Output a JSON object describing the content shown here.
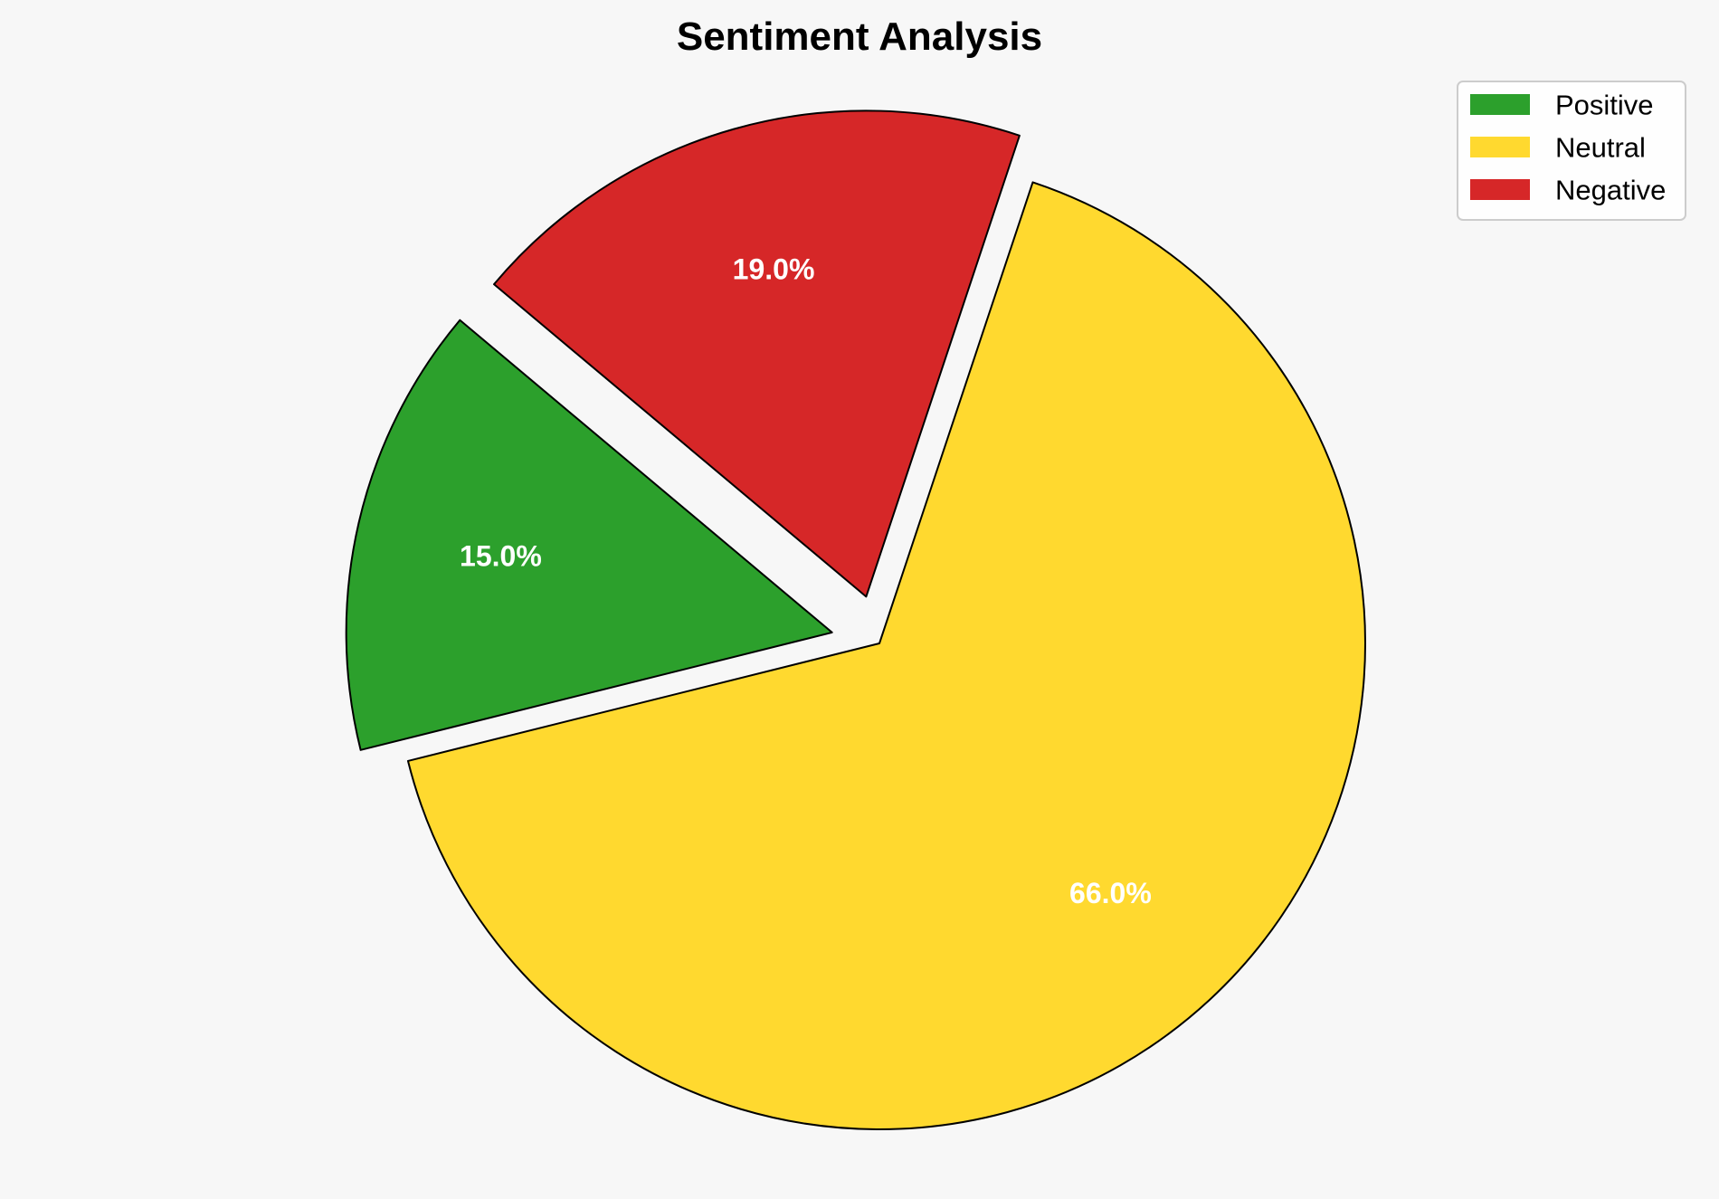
{
  "chart_data": {
    "type": "pie",
    "title": "Sentiment Analysis",
    "categories": [
      "Positive",
      "Neutral",
      "Negative"
    ],
    "values": [
      15.0,
      66.0,
      19.0
    ],
    "labels": [
      "15.0%",
      "66.0%",
      "19.0%"
    ],
    "colors": [
      "#2ca02c",
      "#ffd92f",
      "#d62728"
    ],
    "explode": [
      0.1,
      0,
      0.1
    ],
    "start_angle": 140,
    "direction": "counterclockwise",
    "edge_color": "#000000",
    "legend_placement": "top-right",
    "background": "#f7f7f7"
  }
}
